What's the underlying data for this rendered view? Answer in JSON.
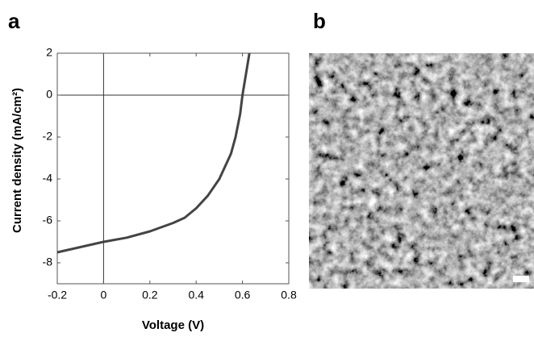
{
  "chart_data": {
    "type": "line",
    "panel_label": "a",
    "xlabel": "Voltage (V)",
    "ylabel": "Current density (mA/cm²)",
    "x": [
      -0.2,
      0,
      0.1,
      0.2,
      0.3,
      0.35,
      0.4,
      0.45,
      0.5,
      0.55,
      0.57,
      0.59,
      0.6,
      0.615,
      0.63
    ],
    "values": [
      -7.5,
      -7.0,
      -6.8,
      -6.5,
      -6.1,
      -5.85,
      -5.4,
      -4.8,
      -4.0,
      -2.8,
      -2.0,
      -0.9,
      0.0,
      1.0,
      2.0
    ],
    "color": "#444444",
    "xlim": [
      -0.2,
      0.8
    ],
    "xticks": [
      -0.2,
      0,
      0.2,
      0.4,
      0.6,
      0.8
    ],
    "ylim": [
      -9,
      2
    ],
    "yticks": [
      -8,
      -6,
      -4,
      -2,
      0,
      2
    ],
    "zero_lines": true
  },
  "image": {
    "panel_label": "b"
  }
}
